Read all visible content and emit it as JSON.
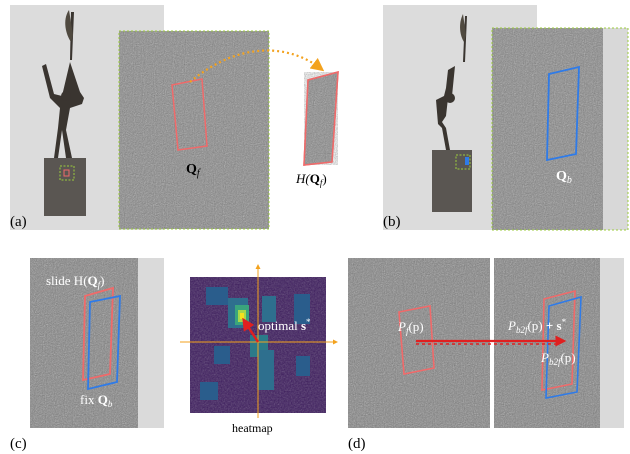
{
  "panels": {
    "a": {
      "tag": "(a)",
      "patch_label": "Q",
      "patch_sub": "f",
      "warp_prefix": "H(",
      "warp_sym": "Q",
      "warp_sub": "f",
      "warp_suffix": ")"
    },
    "b": {
      "tag": "(b)",
      "patch_label": "Q",
      "patch_sub": "b"
    },
    "c": {
      "tag": "(c)",
      "slide_prefix": "slide H(",
      "slide_sym": "Q",
      "slide_sub": "f",
      "slide_suffix": ")",
      "fix_prefix": "fix ",
      "fix_sym": "Q",
      "fix_sub": "b",
      "heatmap_caption": "heatmap",
      "optimal_prefix": "optimal ",
      "optimal_sym": "s",
      "optimal_sup": "*"
    },
    "d": {
      "tag": "(d)",
      "pf_label": "P",
      "pf_sub": "f",
      "pf_arg": "(p)",
      "pb2f_label": "P",
      "pb2f_sub": "b2f",
      "pb2f_arg": "(p)",
      "pb2f_plus": " + s",
      "pb2f_star": "*",
      "pb2f2_label": "P",
      "pb2f2_sub": "b2f",
      "pb2f2_arg": "(p)"
    }
  },
  "colors": {
    "red": "#f06a6a",
    "blue": "#2f7be8",
    "green_dash": "#9ccc3c",
    "orange_arrow": "#f3a21e"
  }
}
